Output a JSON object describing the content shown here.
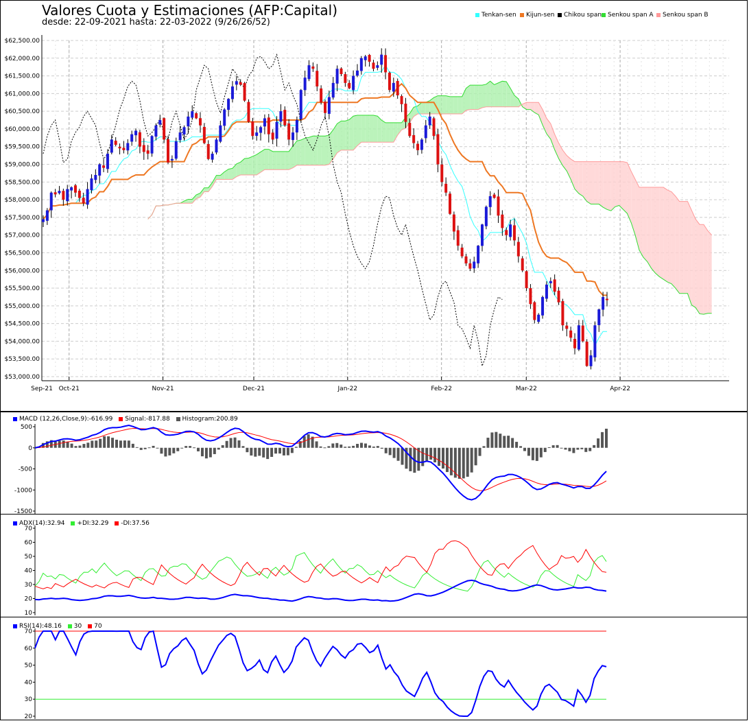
{
  "header": {
    "title": "Valores Cuota y Estimaciones (AFP:Capital)",
    "subtitle": "desde: 22-09-2021 hasta: 22-03-2022 (9/26/26/52)"
  },
  "legend": [
    {
      "label": "Tenkan-sen",
      "color": "#33ffff"
    },
    {
      "label": "Kijun-sen",
      "color": "#ee7722"
    },
    {
      "label": "Chikou span",
      "color": "#000000"
    },
    {
      "label": "Senkou span A",
      "color": "#33dd33"
    },
    {
      "label": "Senkou span B",
      "color": "#ff9999"
    }
  ],
  "chart_data": [
    {
      "type": "candlestick",
      "ylim": [
        53000,
        62500
      ],
      "y_ticks": [
        53000,
        53500,
        54000,
        54500,
        55000,
        55500,
        56000,
        56500,
        57000,
        57500,
        58000,
        58500,
        59000,
        59500,
        60000,
        60500,
        61000,
        61500,
        62000,
        62500
      ],
      "y_tick_labels": [
        "$53,000.00",
        "$53,500.00",
        "$54,000.00",
        "$54,500.00",
        "$55,000.00",
        "$55,500.00",
        "$56,000.00",
        "$56,500.00",
        "$57,000.00",
        "$57,500.00",
        "$58,000.00",
        "$58,500.00",
        "$59,000.00",
        "$59,500.00",
        "$60,000.00",
        "$60,500.00",
        "$61,000.00",
        "$61,500.00",
        "$62,000.00",
        "$62,500.00"
      ],
      "x_ticks": [
        {
          "label": "Sep-21",
          "day": 0
        },
        {
          "label": "Oct-21",
          "day": 9
        },
        {
          "label": "Nov-21",
          "day": 40
        },
        {
          "label": "Dec-21",
          "day": 70
        },
        {
          "label": "Jan-22",
          "day": 101
        },
        {
          "label": "Feb-22",
          "day": 132
        },
        {
          "label": "Mar-22",
          "day": 160
        },
        {
          "label": "Apr-22",
          "day": 191
        }
      ],
      "x_range_days": [
        0,
        227
      ],
      "candles_daily_close": [
        57450,
        57700,
        58200,
        58150,
        58250,
        58000,
        58300,
        58350,
        58200,
        58050,
        57900,
        58300,
        58600,
        58700,
        59000,
        58900,
        59300,
        59700,
        59550,
        59450,
        59400,
        59600,
        59850,
        59950,
        59500,
        59350,
        59300,
        59800,
        60100,
        60250,
        59700,
        59050,
        59150,
        59650,
        59900,
        60050,
        60350,
        60500,
        60300,
        60100,
        59600,
        59150,
        59300,
        59700,
        60100,
        60550,
        60850,
        61200,
        61350,
        61250,
        60800,
        60200,
        59800,
        59900,
        60050,
        60300,
        59850,
        59700,
        60200,
        60500,
        60100,
        59700,
        59900,
        60250,
        61100,
        61450,
        61800,
        61700,
        61200,
        60750,
        60450,
        60900,
        61300,
        61700,
        61550,
        61300,
        61150,
        61500,
        61650,
        62000,
        62050,
        61900,
        61700,
        61800,
        62100,
        61600,
        61100,
        61300,
        60950,
        60700,
        60200,
        59800,
        59600,
        59400,
        59700,
        60100,
        60350,
        59800,
        59000,
        58500,
        58200,
        57600,
        57100,
        56700,
        56400,
        56200,
        56050,
        56250,
        56700,
        57300,
        57800,
        58100,
        58050,
        57550,
        57200,
        57000,
        57300,
        56850,
        56400,
        56000,
        55500,
        55050,
        54600,
        54750,
        55250,
        55600,
        55700,
        55400,
        55100,
        54450,
        54350,
        54100,
        53800,
        54450,
        54000,
        53300,
        53600,
        54450,
        54900,
        55250,
        55180
      ],
      "series": [
        {
          "name": "Tenkan-sen",
          "color": "#33ffff"
        },
        {
          "name": "Kijun-sen",
          "color": "#ee7722"
        },
        {
          "name": "Chikou span",
          "color": "#000000"
        },
        {
          "name": "Senkou span A",
          "color": "#33dd33"
        },
        {
          "name": "Senkou span B",
          "color": "#ff9999"
        }
      ]
    },
    {
      "type": "line",
      "panel": "MACD",
      "legend": [
        {
          "label": "MACD (12,26,Close,9):-616.99",
          "color": "#0000ff"
        },
        {
          "label": "Signal:-817.88",
          "color": "#ff0000"
        },
        {
          "label": "Histogram:200.89",
          "color": "#555555"
        }
      ],
      "y_ticks": [
        500,
        0,
        -500,
        -1000,
        -1500
      ],
      "ylim": [
        -1500,
        500
      ]
    },
    {
      "type": "line",
      "panel": "ADX",
      "legend": [
        {
          "label": "ADX(14):32.94",
          "color": "#0000ff"
        },
        {
          "label": "+DI:32.29",
          "color": "#33ee33"
        },
        {
          "label": "-DI:37.56",
          "color": "#ff0000"
        }
      ],
      "y_ticks": [
        70,
        60,
        50,
        40,
        30,
        20,
        10
      ],
      "ylim": [
        10,
        70
      ]
    },
    {
      "type": "line",
      "panel": "RSI",
      "legend": [
        {
          "label": "RSI(14):48.16",
          "color": "#0000ff"
        },
        {
          "label": "30",
          "color": "#33ee33"
        },
        {
          "label": "70",
          "color": "#ff0000"
        }
      ],
      "y_ticks": [
        70,
        60,
        50,
        40,
        30,
        20
      ],
      "ylim": [
        20,
        70
      ],
      "levels": [
        30,
        70
      ]
    }
  ]
}
